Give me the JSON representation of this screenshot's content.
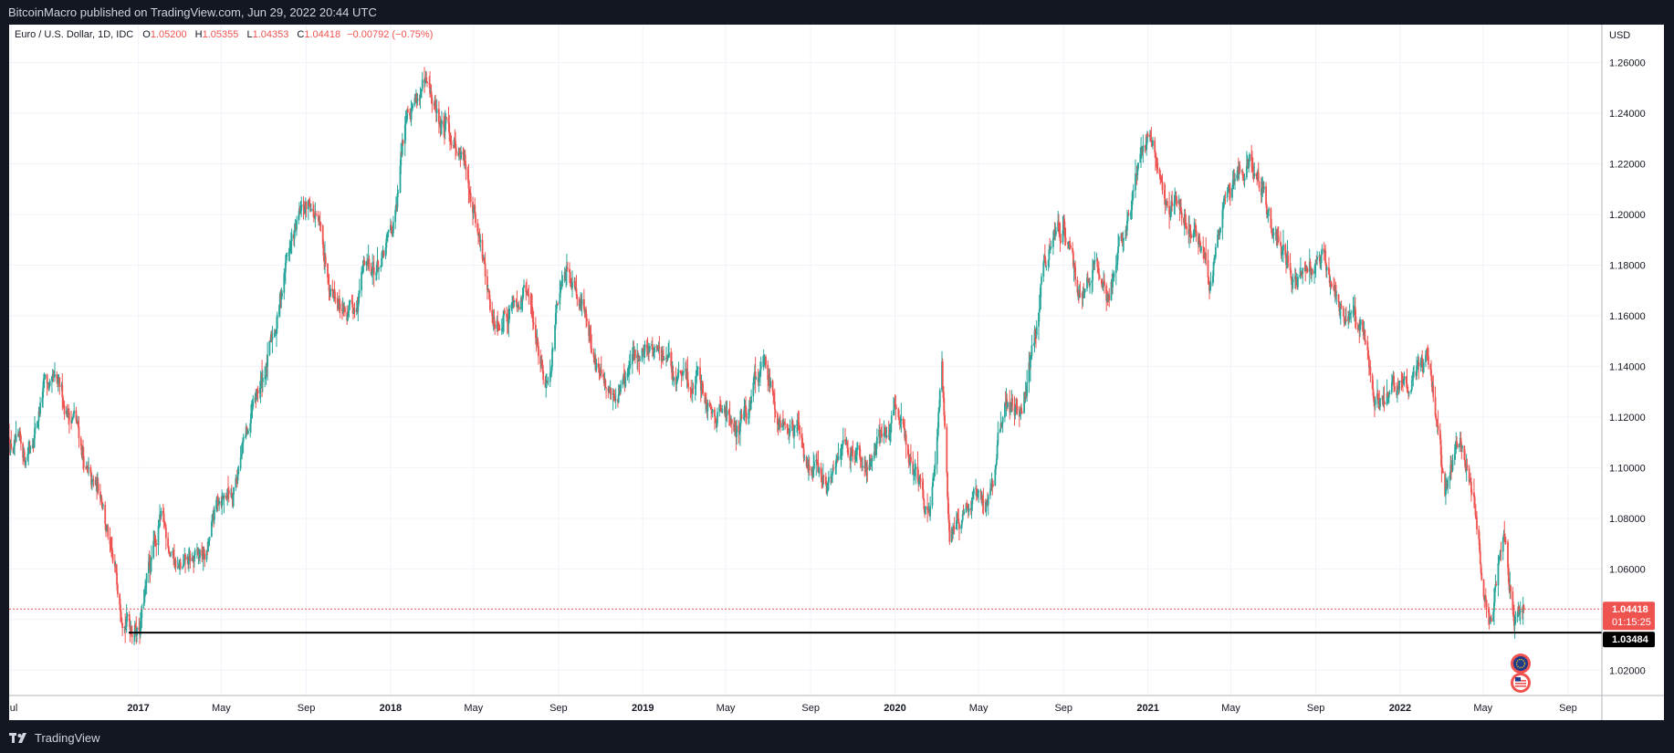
{
  "header": {
    "published": "BitcoinMacro published on TradingView.com, Jun 29, 2022 20:44 UTC"
  },
  "legend": {
    "symbol": "Euro / U.S. Dollar, 1D, IDC",
    "open_label": "O",
    "open": "1.05200",
    "high_label": "H",
    "high": "1.05355",
    "low_label": "L",
    "low": "1.04353",
    "close_label": "C",
    "close": "1.04418",
    "change": "−0.00792 (−0.75%)"
  },
  "price_axis": {
    "currency": "USD",
    "last_price": "1.04418",
    "countdown": "01:15:25",
    "support_label": "1.03484"
  },
  "footer": {
    "brand": "TradingView"
  },
  "colors": {
    "up": "#26a69a",
    "down": "#ef5350",
    "grid": "#f0f3fa",
    "support_line": "#000000",
    "last_price": "#ef5350"
  },
  "icons": [
    "euro-flag-icon",
    "us-flag-icon",
    "tradingview-logo-icon"
  ],
  "chart_data": {
    "type": "candlestick",
    "ylim": [
      1.01,
      1.275
    ],
    "yticks": [
      1.02,
      1.04,
      1.06,
      1.08,
      1.1,
      1.12,
      1.14,
      1.16,
      1.18,
      1.2,
      1.22,
      1.24,
      1.26
    ],
    "ytick_labels": [
      "1.02000",
      "1.04000",
      "1.06000",
      "1.08000",
      "1.10000",
      "1.12000",
      "1.14000",
      "1.16000",
      "1.18000",
      "1.20000",
      "1.22000",
      "1.24000",
      "1.26000"
    ],
    "xlim": [
      "2016-06-28",
      "2022-10-20"
    ],
    "xticks": [
      {
        "date": "2016-07-01",
        "label": "Jul",
        "bold": false
      },
      {
        "date": "2017-01-01",
        "label": "2017",
        "bold": true
      },
      {
        "date": "2017-05-01",
        "label": "May",
        "bold": false
      },
      {
        "date": "2017-09-01",
        "label": "Sep",
        "bold": false
      },
      {
        "date": "2018-01-01",
        "label": "2018",
        "bold": true
      },
      {
        "date": "2018-05-01",
        "label": "May",
        "bold": false
      },
      {
        "date": "2018-09-01",
        "label": "Sep",
        "bold": false
      },
      {
        "date": "2019-01-01",
        "label": "2019",
        "bold": true
      },
      {
        "date": "2019-05-01",
        "label": "May",
        "bold": false
      },
      {
        "date": "2019-09-01",
        "label": "Sep",
        "bold": false
      },
      {
        "date": "2020-01-01",
        "label": "2020",
        "bold": true
      },
      {
        "date": "2020-05-01",
        "label": "May",
        "bold": false
      },
      {
        "date": "2020-09-01",
        "label": "Sep",
        "bold": false
      },
      {
        "date": "2021-01-01",
        "label": "2021",
        "bold": true
      },
      {
        "date": "2021-05-01",
        "label": "May",
        "bold": false
      },
      {
        "date": "2021-09-01",
        "label": "Sep",
        "bold": false
      },
      {
        "date": "2022-01-01",
        "label": "2022",
        "bold": true
      },
      {
        "date": "2022-05-01",
        "label": "May",
        "bold": false
      },
      {
        "date": "2022-09-01",
        "label": "Sep",
        "bold": false
      }
    ],
    "close_path": [
      [
        "2016-06-28",
        1.112
      ],
      [
        "2016-07-20",
        1.102
      ],
      [
        "2016-08-18",
        1.132
      ],
      [
        "2016-09-10",
        1.126
      ],
      [
        "2016-10-01",
        1.12
      ],
      [
        "2016-10-25",
        1.09
      ],
      [
        "2016-11-10",
        1.09
      ],
      [
        "2016-11-25",
        1.058
      ],
      [
        "2016-12-20",
        1.04
      ],
      [
        "2017-01-03",
        1.04
      ],
      [
        "2017-02-01",
        1.078
      ],
      [
        "2017-03-05",
        1.058
      ],
      [
        "2017-04-10",
        1.065
      ],
      [
        "2017-04-28",
        1.088
      ],
      [
        "2017-05-15",
        1.092
      ],
      [
        "2017-06-15",
        1.12
      ],
      [
        "2017-07-15",
        1.15
      ],
      [
        "2017-08-05",
        1.185
      ],
      [
        "2017-08-28",
        1.2
      ],
      [
        "2017-09-08",
        1.205
      ],
      [
        "2017-10-01",
        1.18
      ],
      [
        "2017-11-07",
        1.157
      ],
      [
        "2017-11-25",
        1.182
      ],
      [
        "2017-12-20",
        1.18
      ],
      [
        "2018-01-10",
        1.2
      ],
      [
        "2018-01-25",
        1.245
      ],
      [
        "2018-02-16",
        1.25
      ],
      [
        "2018-03-15",
        1.235
      ],
      [
        "2018-04-05",
        1.23
      ],
      [
        "2018-04-25",
        1.215
      ],
      [
        "2018-05-10",
        1.19
      ],
      [
        "2018-05-29",
        1.158
      ],
      [
        "2018-06-15",
        1.165
      ],
      [
        "2018-07-15",
        1.17
      ],
      [
        "2018-08-15",
        1.135
      ],
      [
        "2018-08-31",
        1.165
      ],
      [
        "2018-09-22",
        1.178
      ],
      [
        "2018-10-15",
        1.155
      ],
      [
        "2018-11-12",
        1.125
      ],
      [
        "2018-12-15",
        1.14
      ],
      [
        "2019-01-10",
        1.15
      ],
      [
        "2019-02-15",
        1.135
      ],
      [
        "2019-03-20",
        1.132
      ],
      [
        "2019-04-20",
        1.125
      ],
      [
        "2019-05-20",
        1.118
      ],
      [
        "2019-06-25",
        1.14
      ],
      [
        "2019-07-15",
        1.125
      ],
      [
        "2019-08-15",
        1.11
      ],
      [
        "2019-10-01",
        1.09
      ],
      [
        "2019-10-20",
        1.115
      ],
      [
        "2019-11-20",
        1.1
      ],
      [
        "2019-12-31",
        1.12
      ],
      [
        "2020-01-25",
        1.105
      ],
      [
        "2020-02-20",
        1.08
      ],
      [
        "2020-03-09",
        1.145
      ],
      [
        "2020-03-20",
        1.068
      ],
      [
        "2020-04-15",
        1.09
      ],
      [
        "2020-05-10",
        1.08
      ],
      [
        "2020-06-10",
        1.13
      ],
      [
        "2020-06-30",
        1.12
      ],
      [
        "2020-07-20",
        1.15
      ],
      [
        "2020-08-05",
        1.18
      ],
      [
        "2020-09-01",
        1.198
      ],
      [
        "2020-09-25",
        1.165
      ],
      [
        "2020-10-20",
        1.18
      ],
      [
        "2020-11-04",
        1.165
      ],
      [
        "2020-11-30",
        1.198
      ],
      [
        "2020-12-20",
        1.22
      ],
      [
        "2021-01-06",
        1.232
      ],
      [
        "2021-02-01",
        1.205
      ],
      [
        "2021-03-10",
        1.195
      ],
      [
        "2021-03-31",
        1.173
      ],
      [
        "2021-04-20",
        1.2
      ],
      [
        "2021-05-25",
        1.222
      ],
      [
        "2021-06-15",
        1.215
      ],
      [
        "2021-06-30",
        1.19
      ],
      [
        "2021-07-20",
        1.18
      ],
      [
        "2021-08-20",
        1.172
      ],
      [
        "2021-09-05",
        1.188
      ],
      [
        "2021-09-25",
        1.17
      ],
      [
        "2021-10-15",
        1.16
      ],
      [
        "2021-11-10",
        1.15
      ],
      [
        "2021-11-24",
        1.122
      ],
      [
        "2021-12-15",
        1.13
      ],
      [
        "2022-01-10",
        1.133
      ],
      [
        "2022-02-10",
        1.145
      ],
      [
        "2022-02-28",
        1.115
      ],
      [
        "2022-03-07",
        1.09
      ],
      [
        "2022-03-31",
        1.11
      ],
      [
        "2022-04-20",
        1.085
      ],
      [
        "2022-05-01",
        1.055
      ],
      [
        "2022-05-12",
        1.038
      ],
      [
        "2022-05-30",
        1.075
      ],
      [
        "2022-06-15",
        1.04
      ],
      [
        "2022-06-29",
        1.044
      ]
    ],
    "last_close": 1.04418,
    "support_level": 1.03484
  }
}
